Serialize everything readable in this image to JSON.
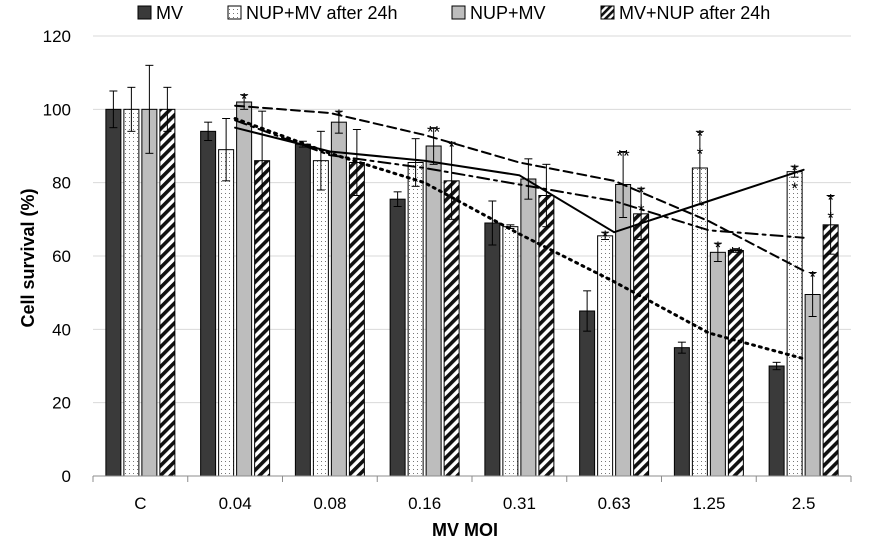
{
  "chart_data": {
    "type": "bar",
    "title": "",
    "xlabel": "MV MOI",
    "ylabel": "Cell survival (%)",
    "ylim": [
      0,
      120
    ],
    "yticks": [
      "0",
      "20",
      "40",
      "60",
      "80",
      "100",
      "120"
    ],
    "grid": true,
    "legend_position": "top",
    "categories": [
      "C",
      "0.04",
      "0.08",
      "0.16",
      "0.31",
      "0.63",
      "1.25",
      "2.5"
    ],
    "series": [
      {
        "name": "MV",
        "pattern": "solid-dark",
        "color": "#3a3a3a",
        "values": [
          100,
          94,
          90.5,
          75.5,
          69,
          45,
          35,
          30
        ],
        "errors": [
          5,
          2.5,
          0.8,
          2,
          6,
          5.5,
          1.5,
          1
        ],
        "stars": [
          "",
          "",
          "",
          "",
          "",
          "",
          "",
          ""
        ]
      },
      {
        "name": "NUP+MV after 24h",
        "pattern": "dotted",
        "color": "#888888",
        "values": [
          100,
          89,
          86,
          85.5,
          68,
          65.5,
          84,
          83
        ],
        "errors": [
          6,
          8.5,
          8,
          6.5,
          0.5,
          1,
          10,
          1.5
        ],
        "stars": [
          "",
          "",
          "",
          "",
          "",
          "*",
          "*\n*",
          "*\n*"
        ]
      },
      {
        "name": "NUP+MV",
        "pattern": "light-gray",
        "color": "#bdbdbd",
        "values": [
          100,
          102,
          96.5,
          90,
          81,
          79.5,
          61,
          49.5
        ],
        "errors": [
          12,
          2,
          3,
          5,
          5.5,
          9,
          2.5,
          6
        ],
        "stars": [
          "",
          "*",
          "*",
          "**",
          "",
          "**",
          "*",
          "*"
        ]
      },
      {
        "name": "MV+NUP after 24h",
        "pattern": "diagonal-hatch",
        "color": "#1a1a1a",
        "values": [
          100,
          86,
          85.5,
          80.5,
          76.5,
          71.5,
          61.5,
          68.5
        ],
        "errors": [
          6,
          13.5,
          9,
          10.5,
          8.5,
          7,
          0.5,
          8
        ],
        "stars": [
          "",
          "",
          "",
          "*",
          "",
          "*\n*",
          "**",
          "*\n*"
        ]
      }
    ],
    "trendlines": [
      {
        "series": "MV",
        "style": "dotted",
        "values": [
          null,
          97.5,
          88,
          80,
          66,
          53,
          39,
          32
        ]
      },
      {
        "series": "NUP+MV after 24h",
        "style": "solid",
        "values": [
          null,
          95,
          88.5,
          86,
          82,
          66.5,
          75,
          83.5
        ]
      },
      {
        "series": "NUP+MV",
        "style": "dashed",
        "values": [
          null,
          101,
          99,
          93,
          85.5,
          80.5,
          69.5,
          56
        ]
      },
      {
        "series": "MV+NUP after 24h",
        "style": "dash-dot",
        "values": [
          null,
          97,
          87.5,
          84,
          79.5,
          75,
          67,
          65
        ]
      }
    ]
  }
}
